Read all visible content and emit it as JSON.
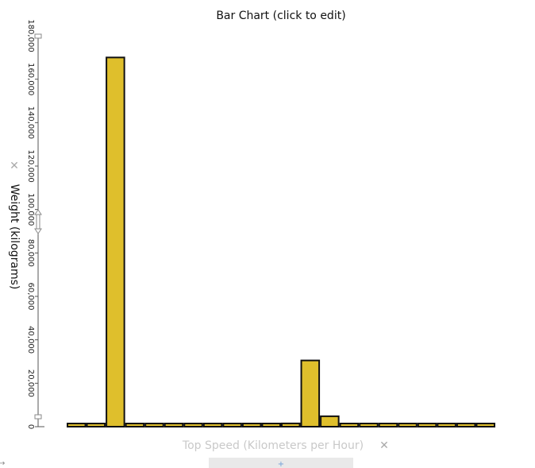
{
  "chart_data": {
    "type": "bar",
    "title": "Bar Chart (click to edit)",
    "xlabel": "Top Speed (Kilometers per Hour)",
    "ylabel": "Weight (kilograms)",
    "ylim": [
      0,
      180000
    ],
    "yticks": [
      0,
      20000,
      40000,
      60000,
      80000,
      100000,
      120000,
      140000,
      160000,
      180000
    ],
    "ytick_labels": [
      "0",
      "20,000",
      "40,000",
      "60,000",
      "80,000",
      "100,000",
      "120,000",
      "140,000",
      "160,000",
      "180,000"
    ],
    "bar_color": "#dfbf2c",
    "values": [
      600,
      600,
      170000,
      800,
      800,
      600,
      300,
      300,
      300,
      300,
      300,
      1500,
      30500,
      4800,
      500,
      700,
      500,
      500,
      600,
      500,
      1000,
      800
    ],
    "grid": false,
    "legend": "none"
  },
  "ui": {
    "remove_glyph": "✕",
    "add_glyph": "+",
    "arrow_glyph": "→"
  }
}
